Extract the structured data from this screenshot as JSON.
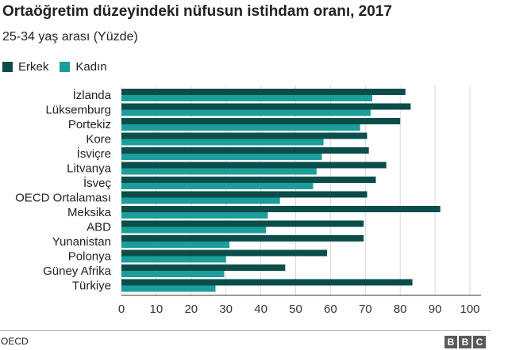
{
  "title": "Ortaöğretim düzeyindeki nüfusun istihdam oranı, 2017",
  "subtitle": "25-34 yaş arası (Yüzde)",
  "source": "OECD",
  "logo": [
    "B",
    "B",
    "C"
  ],
  "colors": {
    "erkek": "#0a4d4a",
    "kadin": "#1b9e99"
  },
  "chart_data": {
    "type": "bar",
    "orientation": "horizontal",
    "categories": [
      "İzlanda",
      "Lüksemburg",
      "Portekiz",
      "Kore",
      "İsviçre",
      "Litvanya",
      "İsveç",
      "OECD Ortalaması",
      "Meksika",
      "ABD",
      "Yunanistan",
      "Polonya",
      "Güney Afrika",
      "Türkiye"
    ],
    "series": [
      {
        "name": "Erkek",
        "values": [
          81.5,
          83,
          80,
          70.5,
          71,
          76,
          73,
          70.5,
          91.5,
          69.5,
          69.5,
          59,
          47,
          83.5
        ]
      },
      {
        "name": "Kadın",
        "values": [
          72,
          71.5,
          68.5,
          58,
          57.5,
          56,
          55,
          45.5,
          42,
          41.5,
          31,
          30,
          29.5,
          27
        ]
      }
    ],
    "xlim": [
      0,
      100
    ],
    "xticks": [
      0,
      10,
      20,
      30,
      40,
      50,
      60,
      70,
      80,
      90,
      100
    ],
    "grid": true,
    "legend": "top-left"
  }
}
